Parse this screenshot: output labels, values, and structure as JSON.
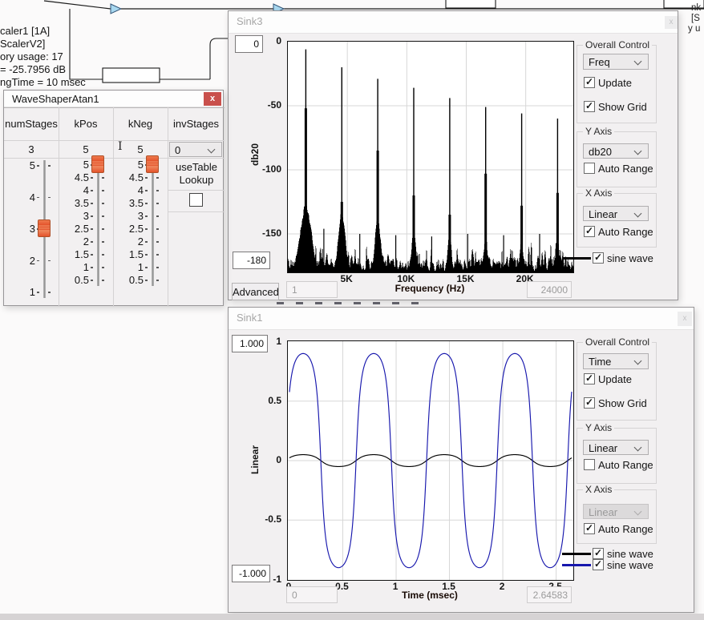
{
  "background": {
    "module_text_lines": [
      "caler1 [1A]",
      "ScalerV2]",
      "ory usage: 17",
      "= -25.7956 dB",
      "ngTime = 10 msec"
    ],
    "right_edge_fragments": [
      "nk",
      "[S",
      "y u"
    ]
  },
  "waveshaper": {
    "title": "WaveShaperAtan1",
    "close_label": "x",
    "columns": [
      {
        "label": "numStages",
        "value": "3"
      },
      {
        "label": "kPos",
        "value": "5"
      },
      {
        "label": "kNeg",
        "value": "5"
      },
      {
        "label": "invStages",
        "value": "0"
      }
    ],
    "sliders": [
      {
        "name": "numStages",
        "ticks": [
          "5",
          "4",
          "3",
          "2",
          "1"
        ],
        "value": "3"
      },
      {
        "name": "kPos",
        "ticks": [
          "5",
          "4.5",
          "4",
          "3.5",
          "3",
          "2.5",
          "2",
          "1.5",
          "1",
          "0.5"
        ],
        "value": "5"
      },
      {
        "name": "kNeg",
        "ticks": [
          "5",
          "4.5",
          "4",
          "3.5",
          "3",
          "2.5",
          "2",
          "1.5",
          "1",
          "0.5"
        ],
        "value": "5"
      }
    ],
    "invstages_dropdown_value": "0",
    "usetable_label": "useTable Lookup",
    "usetable_checked": false
  },
  "sink3": {
    "title": "Sink3",
    "top_value": "0",
    "bottom_value": "-180",
    "advanced_button": "Advanced",
    "x_min_value": "1",
    "x_max_value": "24000",
    "overall": {
      "group_label": "Overall Control",
      "dropdown": "Freq",
      "update_label": "Update",
      "update_checked": true,
      "showgrid_label": "Show Grid",
      "showgrid_checked": true
    },
    "y_axis": {
      "group_label": "Y Axis",
      "dropdown": "db20",
      "autorange_label": "Auto Range",
      "autorange_checked": false,
      "dropdown_disabled": false
    },
    "x_axis": {
      "group_label": "X Axis",
      "dropdown": "Linear",
      "autorange_label": "Auto Range",
      "autorange_checked": true,
      "dropdown_disabled": false
    },
    "legend": [
      {
        "label": "sine wave",
        "color": "#000000",
        "checked": true
      }
    ]
  },
  "sink1": {
    "title": "Sink1",
    "top_value": "1.000",
    "bottom_value": "-1.000",
    "x_min_value": "0",
    "x_max_value": "2.64583",
    "overall": {
      "group_label": "Overall Control",
      "dropdown": "Time",
      "update_label": "Update",
      "update_checked": true,
      "showgrid_label": "Show Grid",
      "showgrid_checked": true
    },
    "y_axis": {
      "group_label": "Y Axis",
      "dropdown": "Linear",
      "autorange_label": "Auto Range",
      "autorange_checked": false,
      "dropdown_disabled": false
    },
    "x_axis": {
      "group_label": "X Axis",
      "dropdown": "Linear",
      "autorange_label": "Auto Range",
      "autorange_checked": true,
      "dropdown_disabled": true
    },
    "legend": [
      {
        "label": "sine wave",
        "color": "#000000",
        "checked": true
      },
      {
        "label": "sine wave",
        "color": "#1717ad",
        "checked": true
      }
    ]
  },
  "chart_data": [
    {
      "id": "sink3-spectrum",
      "type": "line",
      "title": "",
      "xlabel": "Frequency (Hz)",
      "ylabel": "db20",
      "xlim": [
        0,
        24000
      ],
      "ylim": [
        -180,
        0
      ],
      "grid": true,
      "x_ticks": [
        {
          "value": 5000,
          "label": "5K"
        },
        {
          "value": 10000,
          "label": "10K"
        },
        {
          "value": 15000,
          "label": "15K"
        },
        {
          "value": 20000,
          "label": "20K"
        }
      ],
      "y_ticks": [
        {
          "value": 0,
          "label": "0"
        },
        {
          "value": -50,
          "label": "-50"
        },
        {
          "value": -100,
          "label": "-100"
        },
        {
          "value": -150,
          "label": "-150"
        }
      ],
      "series": [
        {
          "name": "sine wave",
          "color": "#000000",
          "noise_floor_db": [
            -179,
            -155
          ],
          "harmonic_peaks": [
            {
              "freq_hz": 1512,
              "peak_db": -6,
              "thick_below_db": -52,
              "skirt_top_db": -122,
              "skirt_width_hz": 1000
            },
            {
              "freq_hz": 4536,
              "peak_db": -20,
              "thick_below_db": -125,
              "skirt_top_db": -127,
              "skirt_width_hz": 600
            },
            {
              "freq_hz": 7560,
              "peak_db": -29,
              "thick_below_db": -85,
              "skirt_top_db": -133,
              "skirt_width_hz": 500
            },
            {
              "freq_hz": 10584,
              "peak_db": -36,
              "thick_below_db": -120,
              "skirt_top_db": -140,
              "skirt_width_hz": 350
            },
            {
              "freq_hz": 13608,
              "peak_db": -44,
              "thick_below_db": -135,
              "skirt_top_db": -145,
              "skirt_width_hz": 300
            },
            {
              "freq_hz": 16632,
              "peak_db": -51,
              "thick_below_db": -103,
              "skirt_top_db": -145,
              "skirt_width_hz": 280
            },
            {
              "freq_hz": 19656,
              "peak_db": -56,
              "thick_below_db": -128,
              "skirt_top_db": -148,
              "skirt_width_hz": 260
            },
            {
              "freq_hz": 22680,
              "peak_db": -60,
              "thick_below_db": -118,
              "skirt_top_db": -146,
              "skirt_width_hz": 260
            }
          ],
          "spur_peaks": [
            {
              "freq_hz": 3024,
              "peak_db": -146
            },
            {
              "freq_hz": 6048,
              "peak_db": -150
            },
            {
              "freq_hz": 9072,
              "peak_db": -151
            },
            {
              "freq_hz": 12096,
              "peak_db": -152
            },
            {
              "freq_hz": 15120,
              "peak_db": -150
            },
            {
              "freq_hz": 18144,
              "peak_db": -151
            },
            {
              "freq_hz": 21168,
              "peak_db": -150
            }
          ]
        }
      ]
    },
    {
      "id": "sink1-time",
      "type": "line",
      "title": "",
      "xlabel": "Time (msec)",
      "ylabel": "Linear",
      "xlim": [
        0,
        2.64583
      ],
      "ylim": [
        -1,
        1
      ],
      "grid": true,
      "x_ticks": [
        {
          "value": 0,
          "label": "0"
        },
        {
          "value": 0.5,
          "label": "0.5"
        },
        {
          "value": 1,
          "label": "1"
        },
        {
          "value": 1.5,
          "label": "1.5"
        },
        {
          "value": 2,
          "label": "2"
        },
        {
          "value": 2.5,
          "label": "2.5"
        }
      ],
      "y_ticks": [
        {
          "value": 1,
          "label": "1"
        },
        {
          "value": 0.5,
          "label": "0.5"
        },
        {
          "value": 0,
          "label": "0"
        },
        {
          "value": -0.5,
          "label": "-0.5"
        },
        {
          "value": -1,
          "label": "-1"
        }
      ],
      "series": [
        {
          "name": "sine wave",
          "color": "#000000",
          "amplitude": 0.05,
          "freq_hz": 1512,
          "phase_rad": 0.35,
          "shape_k": 1.3
        },
        {
          "name": "sine wave",
          "color": "#1717ad",
          "amplitude": 0.9,
          "freq_hz": 1512,
          "phase_rad": 0.35,
          "shape_k": 3.0
        }
      ]
    }
  ]
}
